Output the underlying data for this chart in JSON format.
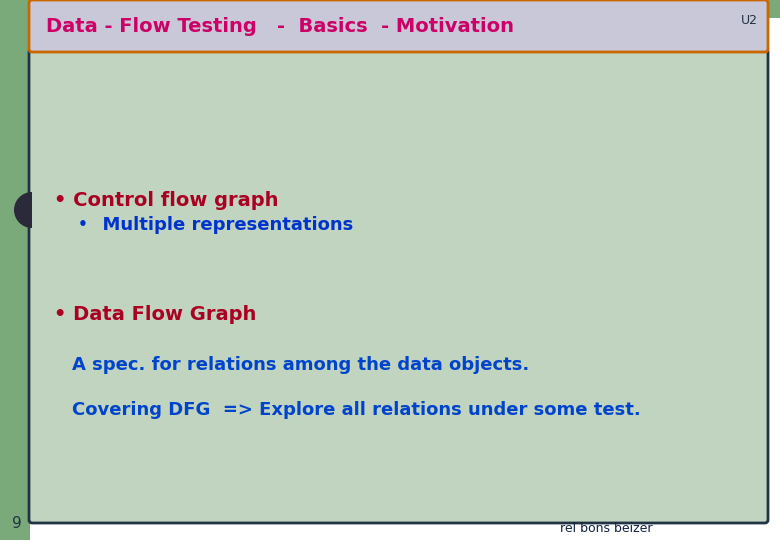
{
  "title": "Data - Flow Testing   -  Basics  - Motivation",
  "u2_label": "U2",
  "header_bg": "#c8c8d8",
  "header_border": "#cc6600",
  "main_bg": "#c0d4c0",
  "main_border": "#223344",
  "left_sidebar_color": "#7aaa7a",
  "top_right_color": "#7aaa7a",
  "outer_bg": "#ffffff",
  "bullet1_text": "• Control flow graph",
  "bullet1_color": "#aa0022",
  "subbullet1_bullet": "•",
  "subbullet1_text": "  Multiple representations",
  "subbullet1_color": "#0033cc",
  "bullet2_text": "• Data Flow Graph",
  "bullet2_color": "#aa0022",
  "line1_text": "A spec. for relations among the data objects.",
  "line1_color": "#0044cc",
  "line2_text": "Covering DFG  => Explore all relations under some test.",
  "line2_color": "#0044cc",
  "footer_text": "rel bons beizer",
  "footer_color": "#112244",
  "page_num": "9",
  "page_color": "#223344",
  "title_color": "#cc0066",
  "u2_color": "#223344",
  "fig_width": 7.8,
  "fig_height": 5.4,
  "dpi": 100
}
